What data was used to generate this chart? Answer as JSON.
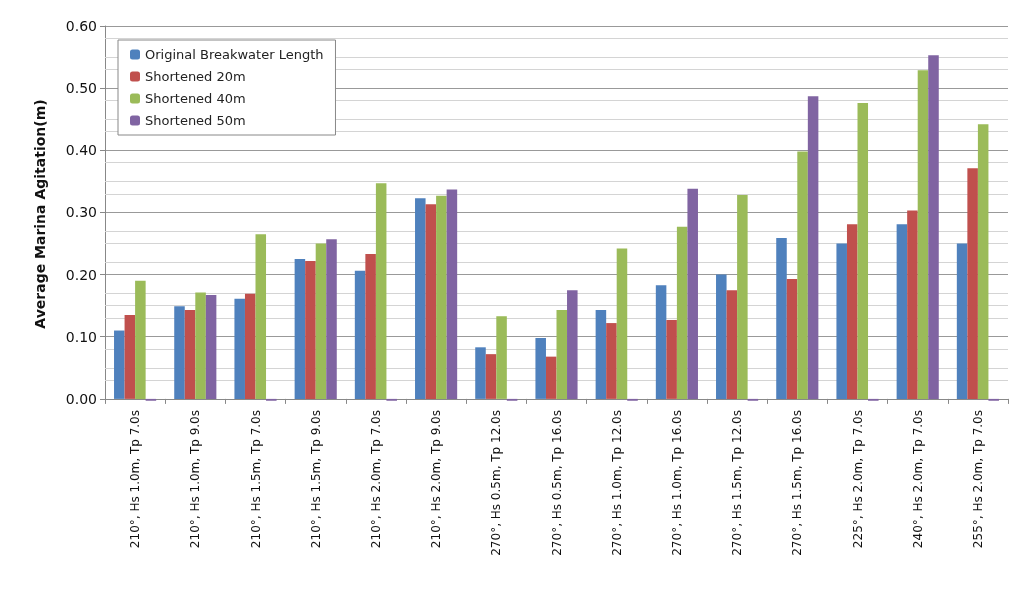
{
  "chart_data": {
    "type": "bar",
    "ylabel": "Average Marina Agitation(m)",
    "categories": [
      "210°, Hs 1.0m, Tp 7.0s",
      "210°, Hs 1.0m, Tp 9.0s",
      "210°, Hs 1.5m, Tp 7.0s",
      "210°, Hs 1.5m, Tp 9.0s",
      "210°, Hs 2.0m, Tp 7.0s",
      "210°, Hs 2.0m, Tp 9.0s",
      "270°, Hs 0.5m, Tp 12.0s",
      "270°, Hs 0.5m, Tp 16.0s",
      "270°, Hs 1.0m, Tp 12.0s",
      "270°, Hs 1.0m, Tp 16.0s",
      "270°, Hs 1.5m, Tp 12.0s",
      "270°, Hs 1.5m, Tp 16.0s",
      "225°, Hs 2.0m, Tp 7.0s",
      "240°, Hs 2.0m, Tp 7.0s",
      "255°, Hs 2.0m, Tp 7.0s"
    ],
    "series": [
      {
        "name": "Original Breakwater Length",
        "color": "#4f81bd",
        "values": [
          0.11,
          0.149,
          0.161,
          0.225,
          0.206,
          0.323,
          0.083,
          0.098,
          0.143,
          0.183,
          0.2,
          0.259,
          0.25,
          0.281,
          0.25
        ]
      },
      {
        "name": "Shortened 20m",
        "color": "#c0504d",
        "values": [
          0.135,
          0.143,
          0.169,
          0.222,
          0.233,
          0.313,
          0.072,
          0.068,
          0.122,
          0.127,
          0.175,
          0.193,
          0.281,
          0.303,
          0.371
        ]
      },
      {
        "name": "Shortened 40m",
        "color": "#9bbb59",
        "values": [
          0.19,
          0.171,
          0.265,
          0.25,
          0.347,
          0.327,
          0.133,
          0.143,
          0.242,
          0.277,
          0.328,
          0.398,
          0.476,
          0.529,
          0.442
        ]
      },
      {
        "name": "Shortened 50m",
        "color": "#8064a2",
        "values": [
          -0.003,
          0.167,
          -0.003,
          0.257,
          -0.003,
          0.337,
          -0.003,
          0.175,
          -0.003,
          0.338,
          -0.003,
          0.487,
          -0.003,
          0.553,
          -0.003
        ]
      }
    ],
    "ylim": [
      -0.005,
      0.6
    ],
    "yticks": [
      {
        "value": 0,
        "label": "0.00"
      },
      {
        "value": 0.1,
        "label": "0.10"
      },
      {
        "value": 0.2,
        "label": "0.20"
      },
      {
        "value": 0.3,
        "label": "0.30"
      },
      {
        "value": 0.4,
        "label": "0.40"
      },
      {
        "value": 0.5,
        "label": "0.50"
      },
      {
        "value": 0.6,
        "label": "0.60"
      }
    ],
    "grid": "y",
    "legend": "top left"
  }
}
